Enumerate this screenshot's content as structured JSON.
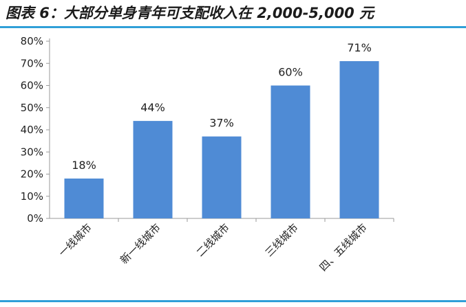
{
  "title": "图表 6：大部分单身青年可支配收入在 2,000-5,000 元",
  "chart_data": {
    "type": "bar",
    "title": "",
    "xlabel": "",
    "ylabel": "",
    "categories": [
      "一线城市",
      "新一线城市",
      "二线城市",
      "三线城市",
      "四、五线城市"
    ],
    "values": [
      18,
      44,
      37,
      60,
      71
    ],
    "data_labels": [
      "18%",
      "44%",
      "37%",
      "60%",
      "71%"
    ],
    "ylim": [
      0,
      80
    ],
    "yticks": [
      0,
      10,
      20,
      30,
      40,
      50,
      60,
      70,
      80
    ],
    "ytick_labels": [
      "0%",
      "10%",
      "20%",
      "30%",
      "40%",
      "50%",
      "60%",
      "70%",
      "80%"
    ],
    "grid": false,
    "legend": "none",
    "bar_color": "#4f8bd5",
    "accent_color": "#2f9fd8"
  }
}
